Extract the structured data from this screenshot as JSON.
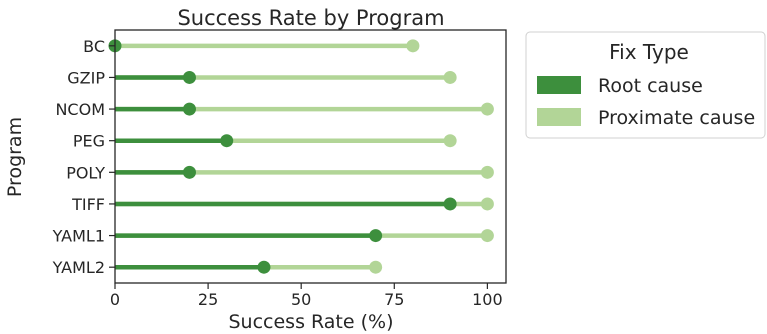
{
  "chart_data": {
    "type": "lollipop",
    "title": "Success Rate by Program",
    "xlabel": "Success Rate (%)",
    "ylabel": "Program",
    "xlim": [
      0,
      105
    ],
    "xticks": [
      0,
      25,
      50,
      75,
      100
    ],
    "grid": false,
    "legend_placement": "outside-right-top",
    "categories": [
      "BC",
      "GZIP",
      "NCOM",
      "PEG",
      "POLY",
      "TIFF",
      "YAML1",
      "YAML2"
    ],
    "series": [
      {
        "name": "Root cause",
        "color": "#3d8f3d",
        "values": [
          0,
          20,
          20,
          30,
          20,
          90,
          70,
          40
        ]
      },
      {
        "name": "Proximate cause",
        "color": "#b2d597",
        "values": [
          80,
          90,
          100,
          90,
          100,
          100,
          100,
          70
        ]
      }
    ],
    "legend": {
      "title": "Fix Type"
    }
  }
}
